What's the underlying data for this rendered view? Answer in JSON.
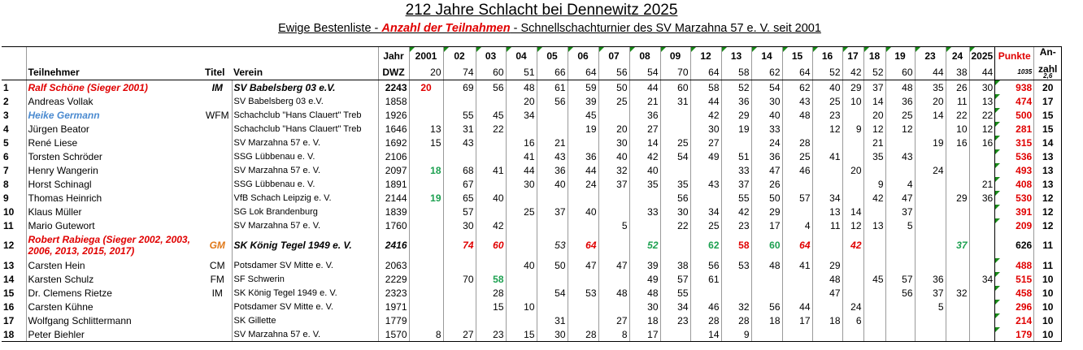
{
  "title": "212 Jahre Schlacht bei Dennewitz 2025",
  "subtitle_pre": "Ewige Bestenliste - ",
  "subtitle_hl": "Anzahl der Teilnahmen",
  "subtitle_post": " - Schnellschachturnier des SV Marzahna 57 e. V. seit 2001",
  "hdr": {
    "jahr": "Jahr",
    "dwz": "DWZ",
    "teilnehmer": "Teilnehmer",
    "titel": "Titel",
    "verein": "Verein",
    "punkte": "Punkte",
    "anzahl": "An-\nzahl",
    "anzahl1": "An-",
    "anzahl2": "zahl",
    "sum_punkte": "1035",
    "sum_anzahl": "2,6"
  },
  "years": [
    "2001",
    "02",
    "03",
    "04",
    "05",
    "06",
    "07",
    "08",
    "09",
    "12",
    "13",
    "14",
    "15",
    "16",
    "17",
    "18",
    "19",
    "23",
    "24",
    "2025"
  ],
  "year_counts": [
    "20",
    "74",
    "60",
    "51",
    "66",
    "64",
    "56",
    "54",
    "70",
    "64",
    "58",
    "62",
    "64",
    "52",
    "42",
    "52",
    "60",
    "44",
    "38",
    "44"
  ],
  "rows": [
    {
      "rank": "1",
      "name": "Ralf Schöne (Sieger 2001)",
      "titel": "IM",
      "verein": "SV Babelsberg 03 e.V.",
      "dwz": "2243",
      "scores": [
        "20",
        "69",
        "56",
        "48",
        "61",
        "59",
        "50",
        "44",
        "60",
        "58",
        "52",
        "54",
        "62",
        "40",
        "29",
        "37",
        "48",
        "35",
        "26",
        "30"
      ],
      "punkte": "938",
      "anzahl": "20"
    },
    {
      "rank": "2",
      "name": "Andreas Vollak",
      "titel": "",
      "verein": "SV Babelsberg 03 e.V.",
      "dwz": "1858",
      "scores": [
        "",
        "",
        "",
        "20",
        "56",
        "39",
        "25",
        "21",
        "31",
        "44",
        "36",
        "30",
        "43",
        "25",
        "10",
        "14",
        "36",
        "20",
        "11",
        "13"
      ],
      "punkte": "474",
      "anzahl": "17"
    },
    {
      "rank": "3",
      "name": "Heike Germann",
      "titel": "WFM",
      "verein": "Schachclub \"Hans Clauert\" Treb",
      "dwz": "1926",
      "scores": [
        "",
        "55",
        "45",
        "34",
        "",
        "45",
        "",
        "36",
        "",
        "42",
        "29",
        "40",
        "48",
        "23",
        "",
        "20",
        "25",
        "14",
        "22",
        "22"
      ],
      "punkte": "500",
      "anzahl": "15"
    },
    {
      "rank": "4",
      "name": "Jürgen Beator",
      "titel": "",
      "verein": "Schachclub \"Hans Clauert\" Treb",
      "dwz": "1646",
      "scores": [
        "13",
        "31",
        "22",
        "",
        "",
        "19",
        "20",
        "27",
        "",
        "30",
        "19",
        "33",
        "",
        "12",
        "9",
        "12",
        "12",
        "",
        "10",
        "12"
      ],
      "punkte": "281",
      "anzahl": "15"
    },
    {
      "rank": "5",
      "name": "René Liese",
      "titel": "",
      "verein": "SV Marzahna 57 e. V.",
      "dwz": "1692",
      "scores": [
        "15",
        "43",
        "",
        "16",
        "21",
        "",
        "30",
        "14",
        "25",
        "27",
        "",
        "24",
        "28",
        "",
        "",
        "21",
        "",
        "19",
        "16",
        "16"
      ],
      "punkte": "315",
      "anzahl": "14"
    },
    {
      "rank": "6",
      "name": "Torsten Schröder",
      "titel": "",
      "verein": "SSG Lübbenau e. V.",
      "dwz": "2106",
      "scores": [
        "",
        "",
        "",
        "41",
        "43",
        "36",
        "40",
        "42",
        "54",
        "49",
        "51",
        "36",
        "25",
        "41",
        "",
        "35",
        "43",
        "",
        "",
        ""
      ],
      "punkte": "536",
      "anzahl": "13"
    },
    {
      "rank": "7",
      "name": "Henry Wangerin",
      "titel": "",
      "verein": "SV Marzahna 57 e. V.",
      "dwz": "2097",
      "scores": [
        "18",
        "68",
        "41",
        "44",
        "36",
        "44",
        "32",
        "40",
        "",
        "",
        "33",
        "47",
        "46",
        "",
        "20",
        "",
        "",
        "24",
        "",
        ""
      ],
      "punkte": "493",
      "anzahl": "13"
    },
    {
      "rank": "8",
      "name": "Horst Schinagl",
      "titel": "",
      "verein": "SSG Lübbenau e. V.",
      "dwz": "1891",
      "scores": [
        "",
        "67",
        "",
        "30",
        "40",
        "24",
        "37",
        "35",
        "35",
        "43",
        "37",
        "26",
        "",
        "",
        "",
        "9",
        "4",
        "",
        "",
        "21"
      ],
      "punkte": "408",
      "anzahl": "13"
    },
    {
      "rank": "9",
      "name": "Thomas Heinrich",
      "titel": "",
      "verein": "VfB Schach Leipzig e. V.",
      "dwz": "2144",
      "scores": [
        "19",
        "65",
        "40",
        "",
        "",
        "",
        "",
        "",
        "56",
        "",
        "55",
        "50",
        "57",
        "34",
        "",
        "42",
        "47",
        "",
        "29",
        "36"
      ],
      "punkte": "530",
      "anzahl": "12"
    },
    {
      "rank": "10",
      "name": "Klaus Müller",
      "titel": "",
      "verein": "SG Lok Brandenburg",
      "dwz": "1839",
      "scores": [
        "",
        "57",
        "",
        "25",
        "37",
        "40",
        "",
        "33",
        "30",
        "34",
        "42",
        "29",
        "",
        "13",
        "14",
        "",
        "37",
        "",
        "",
        ""
      ],
      "punkte": "391",
      "anzahl": "12"
    },
    {
      "rank": "11",
      "name": "Mario Gutewort",
      "titel": "",
      "verein": "SV Marzahna 57 e. V.",
      "dwz": "1760",
      "scores": [
        "",
        "30",
        "42",
        "",
        "",
        "",
        "5",
        "",
        "22",
        "25",
        "23",
        "17",
        "4",
        "11",
        "12",
        "13",
        "5",
        "",
        "",
        ""
      ],
      "punkte": "209",
      "anzahl": "12"
    },
    {
      "rank": "12",
      "name": "Robert Rabiega (Sieger 2002, 2003, 2006, 2013, 2015, 2017)",
      "titel": "GM",
      "verein": "SK König Tegel 1949 e. V.",
      "dwz": "2416",
      "scores": [
        "",
        "74",
        "60",
        "",
        "53",
        "64",
        "",
        "52",
        "",
        "62",
        "58",
        "60",
        "64",
        "",
        "42",
        "",
        "",
        "",
        "37",
        ""
      ],
      "punkte": "626",
      "anzahl": "11"
    },
    {
      "rank": "13",
      "name": "Carsten Hein",
      "titel": "CM",
      "verein": "Potsdamer SV Mitte e. V.",
      "dwz": "2063",
      "scores": [
        "",
        "",
        "",
        "40",
        "50",
        "47",
        "47",
        "39",
        "38",
        "56",
        "53",
        "48",
        "41",
        "29",
        "",
        "",
        "",
        "",
        "",
        ""
      ],
      "punkte": "488",
      "anzahl": "11"
    },
    {
      "rank": "14",
      "name": "Karsten Schulz",
      "titel": "FM",
      "verein": "SF Schwerin",
      "dwz": "2229",
      "scores": [
        "",
        "70",
        "58",
        "",
        "",
        "",
        "",
        "49",
        "57",
        "61",
        "",
        "",
        "",
        "48",
        "",
        "45",
        "57",
        "36",
        "",
        "34"
      ],
      "punkte": "515",
      "anzahl": "10"
    },
    {
      "rank": "15",
      "name": "Dr. Clemens Rietze",
      "titel": "IM",
      "verein": "SK König Tegel 1949 e. V.",
      "dwz": "2323",
      "scores": [
        "",
        "",
        "28",
        "",
        "54",
        "53",
        "48",
        "48",
        "55",
        "",
        "",
        "",
        "",
        "47",
        "",
        "",
        "56",
        "37",
        "32",
        ""
      ],
      "punkte": "458",
      "anzahl": "10"
    },
    {
      "rank": "16",
      "name": "Carsten Kühne",
      "titel": "",
      "verein": "Potsdamer SV Mitte e. V.",
      "dwz": "1971",
      "scores": [
        "",
        "",
        "15",
        "10",
        "",
        "",
        "",
        "30",
        "34",
        "46",
        "32",
        "56",
        "44",
        "",
        "24",
        "",
        "",
        "5",
        "",
        ""
      ],
      "punkte": "296",
      "anzahl": "10"
    },
    {
      "rank": "17",
      "name": "Wolfgang Schlittermann",
      "titel": "",
      "verein": "SK Gillette",
      "dwz": "1779",
      "scores": [
        "",
        "",
        "",
        "",
        "31",
        "",
        "27",
        "18",
        "23",
        "28",
        "28",
        "18",
        "17",
        "18",
        "6",
        "",
        "",
        "",
        "",
        ""
      ],
      "punkte": "214",
      "anzahl": "10"
    },
    {
      "rank": "18",
      "name": "Peter Biehler",
      "titel": "",
      "verein": "SV Marzahna 57 e. V.",
      "dwz": "1570",
      "scores": [
        "8",
        "27",
        "23",
        "15",
        "30",
        "28",
        "8",
        "17",
        "",
        "14",
        "9",
        "",
        "",
        "",
        "",
        "",
        "",
        "",
        "",
        ""
      ],
      "punkte": "179",
      "anzahl": "10"
    }
  ],
  "colors": {
    "red": "#e00000",
    "green": "#1ca050",
    "blue": "#4a8ad0",
    "orange": "#e07818",
    "marker": "#1a8a1a"
  }
}
